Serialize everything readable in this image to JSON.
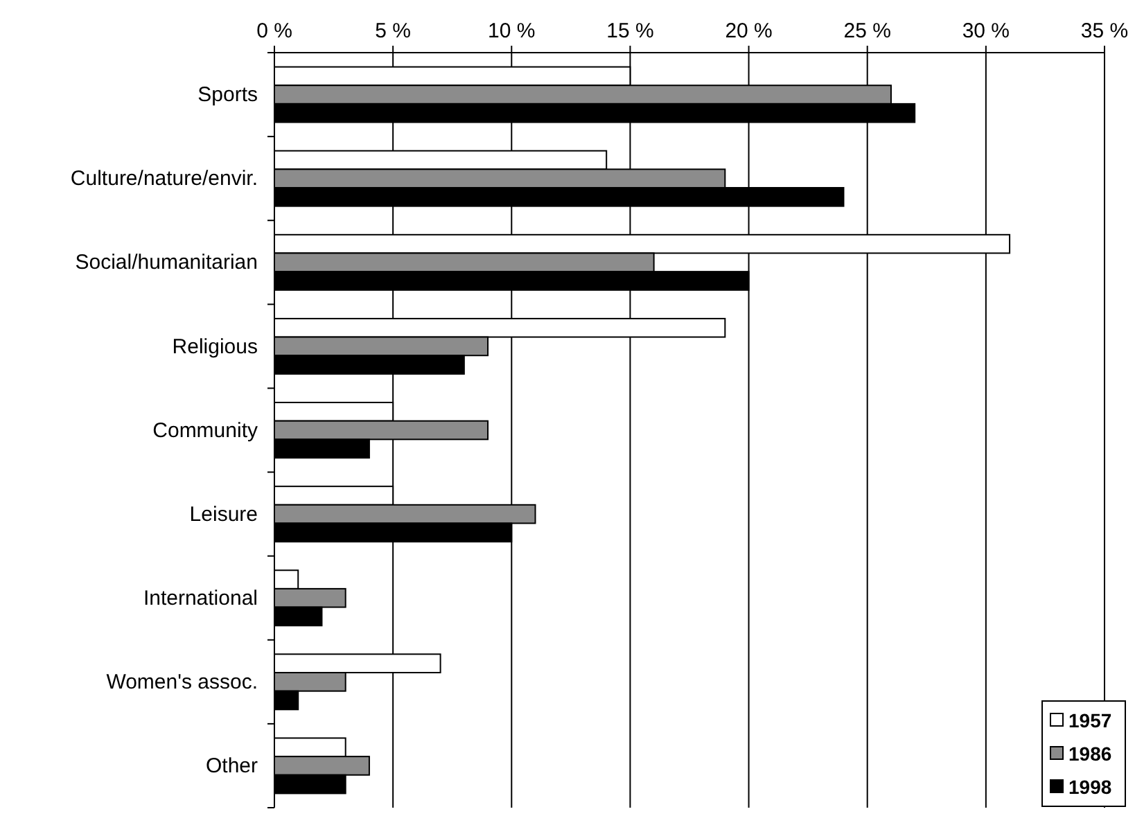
{
  "chart_data": {
    "type": "bar",
    "orientation": "horizontal",
    "categories": [
      "Sports",
      "Culture/nature/envir.",
      "Social/humanitarian",
      "Religious",
      "Community",
      "Leisure",
      "International",
      "Women's assoc.",
      "Other"
    ],
    "series": [
      {
        "name": "1957",
        "color": "#ffffff",
        "values": [
          15,
          14,
          31,
          19,
          5,
          5,
          1,
          7,
          3
        ]
      },
      {
        "name": "1986",
        "color": "#8c8c8c",
        "values": [
          26,
          19,
          16,
          9,
          9,
          11,
          3,
          3,
          4
        ]
      },
      {
        "name": "1998",
        "color": "#000000",
        "values": [
          27,
          24,
          20,
          8,
          4,
          10,
          2,
          1,
          3
        ]
      }
    ],
    "xlim": [
      0,
      35
    ],
    "xticks": [
      {
        "value": 0,
        "label": "0 %"
      },
      {
        "value": 5,
        "label": "5 %"
      },
      {
        "value": 10,
        "label": "10 %"
      },
      {
        "value": 15,
        "label": "15 %"
      },
      {
        "value": 20,
        "label": "20 %"
      },
      {
        "value": 25,
        "label": "25 %"
      },
      {
        "value": 30,
        "label": "30 %"
      },
      {
        "value": 35,
        "label": "35 %"
      }
    ],
    "grid": "x",
    "legend": "bottom right"
  }
}
